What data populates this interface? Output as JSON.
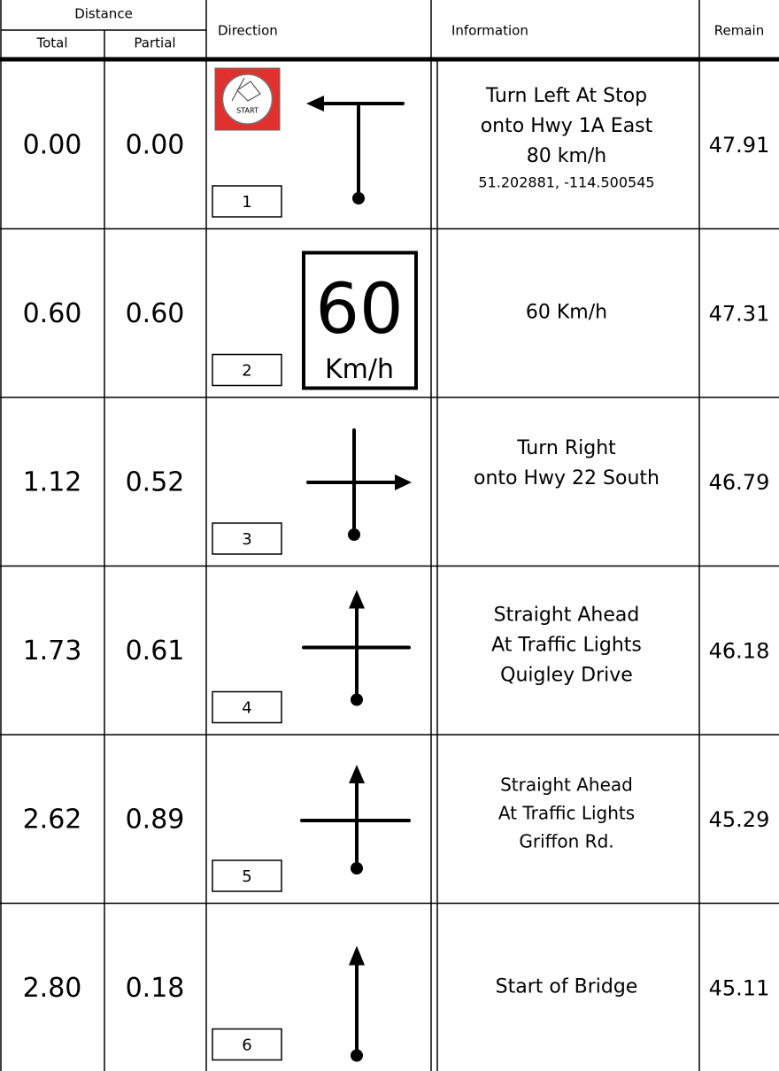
{
  "header": {
    "distance": "Distance",
    "total": "Total",
    "partial": "Partial",
    "direction": "Direction",
    "information": "Information",
    "remain": "Remain"
  },
  "rows": [
    {
      "total": "0.00",
      "partial": "0.00",
      "number": "1",
      "badge": "START",
      "info": [
        "Turn Left At Stop",
        "onto Hwy 1A East",
        "80 km/h"
      ],
      "coords": "51.202881, -114.500545",
      "remain": "47.91"
    },
    {
      "total": "0.60",
      "partial": "0.60",
      "number": "2",
      "sign": {
        "speed": "60",
        "unit": "Km/h"
      },
      "info": [
        "60 Km/h"
      ],
      "remain": "47.31"
    },
    {
      "total": "1.12",
      "partial": "0.52",
      "number": "3",
      "info": [
        "Turn Right",
        "onto Hwy 22 South"
      ],
      "remain": "46.79"
    },
    {
      "total": "1.73",
      "partial": "0.61",
      "number": "4",
      "info": [
        "Straight Ahead",
        "At Traffic Lights",
        "Quigley Drive"
      ],
      "remain": "46.18"
    },
    {
      "total": "2.62",
      "partial": "0.89",
      "number": "5",
      "info": [
        "Straight Ahead",
        "At Traffic Lights",
        "Griffon Rd."
      ],
      "remain": "45.29"
    },
    {
      "total": "2.80",
      "partial": "0.18",
      "number": "6",
      "info": [
        "Start of Bridge"
      ],
      "remain": "45.11"
    }
  ]
}
